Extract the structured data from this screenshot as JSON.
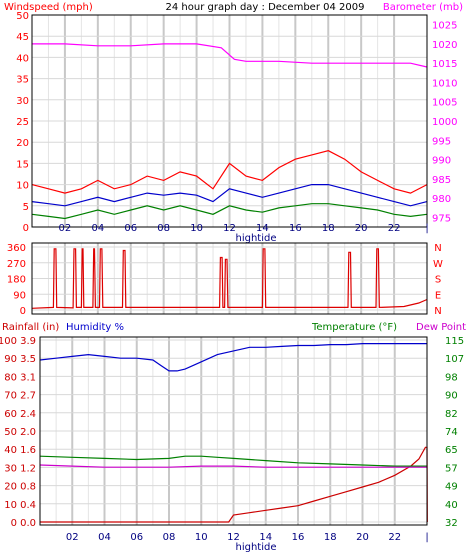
{
  "chart_data": [
    {
      "type": "line",
      "title": "24 hour graph day : December 04 2009",
      "left_axis_label": "Windspeed (mph)",
      "right_axis_label": "Barometer (mb)",
      "x_ticks": [
        "02",
        "04",
        "06",
        "08",
        "10",
        "12",
        "14",
        "16",
        "18",
        "20",
        "22"
      ],
      "x_label": "hightide",
      "y_left_ticks": [
        "0",
        "5",
        "10",
        "15",
        "20",
        "25",
        "30",
        "35",
        "40",
        "45",
        "50"
      ],
      "y_left_range": [
        0,
        50
      ],
      "y_right_ticks": [
        "975",
        "980",
        "985",
        "990",
        "995",
        "1000",
        "1005",
        "1010",
        "1015",
        "1020",
        "1025"
      ],
      "y_right_range": [
        972.5,
        1027.5
      ],
      "grid": true,
      "colors": {
        "left": "#ff0000",
        "right": "#ff00ff",
        "title": "#000000"
      },
      "series": [
        {
          "name": "Barometer",
          "color": "#ff00ff",
          "axis": "right",
          "x": [
            0,
            2,
            4,
            6,
            8,
            10,
            11.5,
            12.3,
            13,
            15,
            17,
            19,
            21,
            23,
            24
          ],
          "y": [
            1020,
            1020,
            1019.5,
            1019.5,
            1020,
            1020,
            1019,
            1016,
            1015.5,
            1015.5,
            1015,
            1015,
            1015,
            1015,
            1014
          ]
        },
        {
          "name": "Gust",
          "color": "#ff0000",
          "axis": "left",
          "x": [
            0,
            1,
            2,
            3,
            4,
            5,
            6,
            7,
            8,
            9,
            10,
            11,
            12,
            13,
            14,
            15,
            16,
            17,
            18,
            19,
            20,
            21,
            22,
            23,
            24
          ],
          "y": [
            10,
            9,
            8,
            9,
            11,
            9,
            10,
            12,
            11,
            13,
            12,
            9,
            15,
            12,
            11,
            14,
            16,
            17,
            18,
            16,
            13,
            11,
            9,
            8,
            10
          ]
        },
        {
          "name": "Average",
          "color": "#0000cc",
          "axis": "left",
          "x": [
            0,
            1,
            2,
            3,
            4,
            5,
            6,
            7,
            8,
            9,
            10,
            11,
            12,
            13,
            14,
            15,
            16,
            17,
            18,
            19,
            20,
            21,
            22,
            23,
            24
          ],
          "y": [
            6,
            5.5,
            5,
            6,
            7,
            6,
            7,
            8,
            7.5,
            8,
            7.5,
            6,
            9,
            8,
            7,
            8,
            9,
            10,
            10,
            9,
            8,
            7,
            6,
            5,
            6
          ]
        },
        {
          "name": "Low",
          "color": "#008000",
          "axis": "left",
          "x": [
            0,
            1,
            2,
            3,
            4,
            5,
            6,
            7,
            8,
            9,
            10,
            11,
            12,
            13,
            14,
            15,
            16,
            17,
            18,
            19,
            20,
            21,
            22,
            23,
            24
          ],
          "y": [
            3,
            2.5,
            2,
            3,
            4,
            3,
            4,
            5,
            4,
            5,
            4,
            3,
            5,
            4,
            3.5,
            4.5,
            5,
            5.5,
            5.5,
            5,
            4.5,
            4,
            3,
            2.5,
            3
          ]
        }
      ]
    },
    {
      "type": "line",
      "x_ticks": [
        "02",
        "04",
        "06",
        "08",
        "10",
        "12",
        "14",
        "16",
        "18",
        "20",
        "22"
      ],
      "x_label": "hightide",
      "y_left_ticks": [
        "0",
        "90",
        "180",
        "270",
        "360"
      ],
      "y_left_range": [
        0,
        360
      ],
      "right_labels": [
        "N",
        "W",
        "S",
        "E",
        "N"
      ],
      "grid": true,
      "series": [
        {
          "name": "Wind direction",
          "color": "#dd0000",
          "x": [
            0,
            1.3,
            1.35,
            1.45,
            1.5,
            2.5,
            2.55,
            2.65,
            2.7,
            3,
            3.05,
            3.1,
            3.15,
            3.7,
            3.75,
            3.8,
            3.85,
            4.1,
            4.15,
            4.25,
            4.3,
            5.5,
            5.55,
            5.65,
            5.7,
            11.4,
            11.45,
            11.55,
            11.6,
            11.7,
            11.75,
            11.85,
            11.9,
            14.0,
            14.05,
            14.15,
            14.2,
            19.2,
            19.25,
            19.35,
            19.4,
            20.9,
            20.95,
            21.05,
            21.1,
            22.6,
            23.5,
            24
          ],
          "y": [
            10,
            15,
            350,
            350,
            15,
            12,
            350,
            350,
            15,
            15,
            350,
            350,
            15,
            15,
            350,
            350,
            15,
            15,
            350,
            350,
            15,
            15,
            340,
            340,
            15,
            15,
            300,
            300,
            15,
            15,
            290,
            290,
            15,
            15,
            350,
            350,
            15,
            15,
            330,
            330,
            15,
            15,
            350,
            350,
            15,
            20,
            40,
            60
          ]
        }
      ]
    },
    {
      "type": "line",
      "left_axis_label": "Rainfall (in)",
      "humidity_label": "Humidity %",
      "right_axis_label": "Temperature (°F)",
      "dew_label": "Dew Point",
      "x_ticks": [
        "02",
        "04",
        "06",
        "08",
        "10",
        "12",
        "14",
        "16",
        "18",
        "20",
        "22"
      ],
      "x_label": "hightide",
      "y_rain_ticks": [
        "0.0",
        "0.4",
        "0.8",
        "1.2",
        "1.6",
        "2.0",
        "2.4",
        "2.7",
        "3.1",
        "3.5",
        "3.9"
      ],
      "y_rain_range": [
        0,
        3.9
      ],
      "y_humidity_ticks": [
        "0",
        "10",
        "20",
        "30",
        "40",
        "50",
        "60",
        "70",
        "80",
        "90",
        "100"
      ],
      "y_humidity_range": [
        0,
        100
      ],
      "y_temp_ticks": [
        "32",
        "40",
        "49",
        "57",
        "65",
        "74",
        "82",
        "90",
        "98",
        "107",
        "115"
      ],
      "y_temp_range": [
        32,
        115
      ],
      "grid": true,
      "colors": {
        "rain": "#cc0000",
        "humidity": "#0000cc",
        "temp": "#008000",
        "dew": "#cc00cc"
      },
      "series": [
        {
          "name": "Rainfall",
          "color": "#cc0000",
          "axis": "rain",
          "x": [
            0,
            11.7,
            12.0,
            13,
            14,
            15,
            16,
            17,
            18,
            19,
            20,
            21,
            22,
            23,
            23.5,
            23.9,
            24,
            24.02
          ],
          "y": [
            0,
            0,
            0.15,
            0.2,
            0.25,
            0.3,
            0.35,
            0.45,
            0.55,
            0.65,
            0.75,
            0.85,
            1.0,
            1.2,
            1.35,
            1.6,
            1.6,
            0
          ]
        },
        {
          "name": "Humidity",
          "color": "#0000cc",
          "axis": "humidity",
          "x": [
            0,
            1,
            2,
            3,
            4,
            5,
            6,
            7,
            7.5,
            8,
            8.5,
            9,
            10,
            11,
            12,
            13,
            14,
            15,
            16,
            17,
            18,
            19,
            20,
            21,
            22,
            23,
            24
          ],
          "y": [
            89,
            90,
            91,
            92,
            91,
            90,
            90,
            89,
            86,
            83,
            83,
            84,
            88,
            92,
            94,
            96,
            96,
            96.5,
            97,
            97,
            97.5,
            97.5,
            98,
            98,
            98,
            98,
            98
          ]
        },
        {
          "name": "Temperature",
          "color": "#008000",
          "axis": "temp",
          "x": [
            0,
            2,
            4,
            6,
            8,
            9,
            10,
            11,
            12,
            14,
            16,
            18,
            20,
            22,
            24
          ],
          "y": [
            62,
            61.5,
            61,
            60.5,
            61,
            62,
            62,
            61.5,
            61,
            60,
            59,
            58.5,
            58,
            57.5,
            57.5
          ]
        },
        {
          "name": "Dew Point",
          "color": "#cc00cc",
          "axis": "temp",
          "x": [
            0,
            2,
            4,
            6,
            8,
            10,
            12,
            14,
            16,
            18,
            20,
            22,
            24
          ],
          "y": [
            58,
            57.5,
            57,
            57,
            57,
            57.5,
            57.5,
            57,
            57,
            57,
            57,
            57,
            57
          ]
        }
      ]
    }
  ]
}
